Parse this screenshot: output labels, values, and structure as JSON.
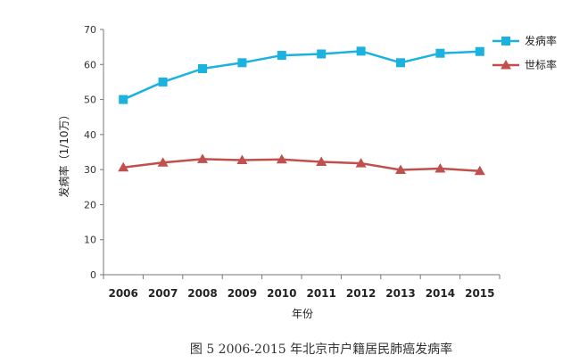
{
  "caption": "图 5   2006-2015 年北京市户籍居民肺癌发病率",
  "chart_data": {
    "type": "line",
    "x": [
      "2006",
      "2007",
      "2008",
      "2009",
      "2010",
      "2011",
      "2012",
      "2013",
      "2014",
      "2015"
    ],
    "xlabel": "年份",
    "ylabel": "发病率（1/10万）",
    "ylim": [
      0,
      70
    ],
    "yticks": [
      "0",
      "10",
      "20",
      "30",
      "40",
      "50",
      "60",
      "70"
    ],
    "grid": false,
    "legend": "right",
    "series": [
      {
        "name": "发病率",
        "color": "#1bb2e0",
        "marker": "square",
        "values": [
          50.0,
          55.0,
          58.8,
          60.5,
          62.6,
          63.0,
          63.8,
          60.5,
          63.2,
          63.7
        ]
      },
      {
        "name": "世标率",
        "color": "#c0504d",
        "marker": "triangle",
        "values": [
          30.6,
          32.0,
          33.0,
          32.7,
          32.9,
          32.2,
          31.8,
          29.9,
          30.3,
          29.6
        ]
      }
    ]
  }
}
